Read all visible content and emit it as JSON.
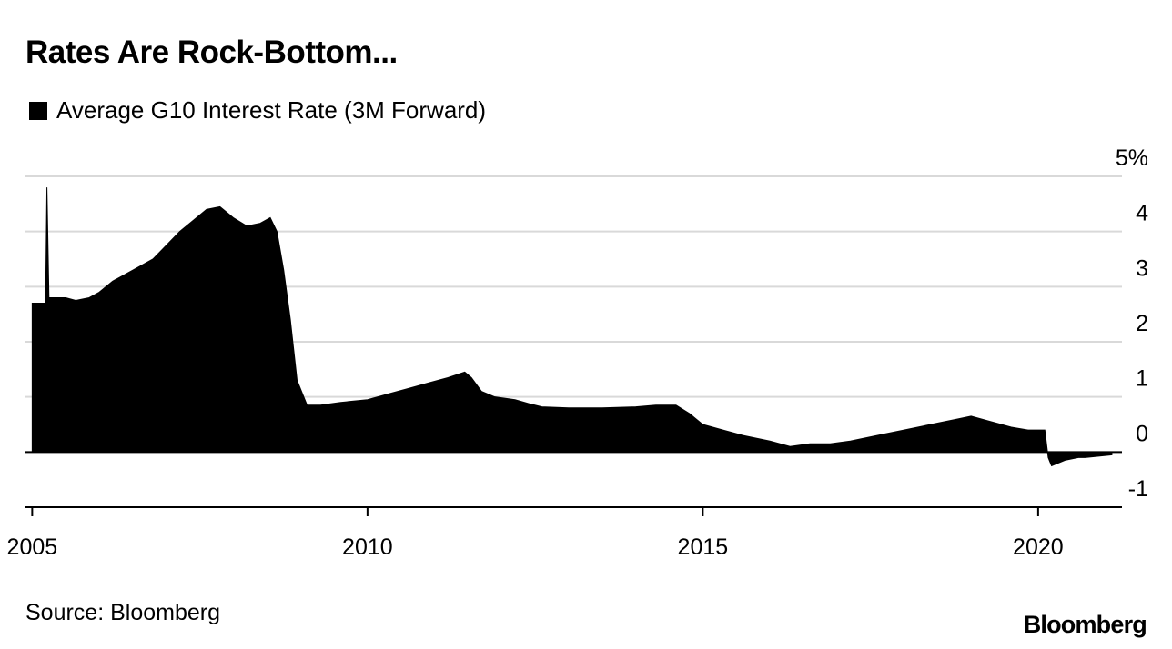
{
  "chart_data": {
    "type": "area",
    "title": "Rates Are Rock-Bottom...",
    "legend": [
      {
        "label": "Average G10 Interest Rate (3M Forward)",
        "color": "#000000"
      }
    ],
    "legend_position": "top-left",
    "xlabel": "",
    "ylabel": "",
    "xlim": [
      2004.9,
      2021.25
    ],
    "ylim": [
      -1,
      5
    ],
    "x_ticks": [
      2005,
      2010,
      2015,
      2020
    ],
    "x_tick_labels": [
      "2005",
      "2010",
      "2015",
      "2020"
    ],
    "y_ticks": [
      5,
      4,
      3,
      2,
      1,
      0,
      -1
    ],
    "y_tick_labels": [
      "5%",
      "4",
      "3",
      "2",
      "1",
      "0",
      "-1"
    ],
    "grid": true,
    "series": [
      {
        "name": "Average G10 Interest Rate (3M Forward)",
        "x": [
          2005.0,
          2005.2,
          2005.22,
          2005.25,
          2005.5,
          2005.65,
          2005.85,
          2006.0,
          2006.2,
          2006.5,
          2006.8,
          2007.0,
          2007.2,
          2007.4,
          2007.6,
          2007.8,
          2008.0,
          2008.2,
          2008.4,
          2008.55,
          2008.65,
          2008.75,
          2008.85,
          2008.95,
          2009.1,
          2009.3,
          2009.6,
          2010.0,
          2010.3,
          2010.6,
          2010.9,
          2011.2,
          2011.45,
          2011.55,
          2011.7,
          2011.9,
          2012.2,
          2012.4,
          2012.6,
          2013.0,
          2013.5,
          2014.0,
          2014.3,
          2014.6,
          2014.8,
          2015.0,
          2015.3,
          2015.6,
          2016.0,
          2016.3,
          2016.6,
          2016.9,
          2017.2,
          2017.6,
          2018.0,
          2018.4,
          2018.8,
          2019.0,
          2019.3,
          2019.6,
          2019.85,
          2020.1,
          2020.15,
          2020.2,
          2020.4,
          2020.6,
          2020.7,
          2021.1
        ],
        "values": [
          2.7,
          2.7,
          4.8,
          2.8,
          2.8,
          2.75,
          2.8,
          2.9,
          3.1,
          3.3,
          3.5,
          3.75,
          4.0,
          4.2,
          4.4,
          4.45,
          4.25,
          4.1,
          4.15,
          4.25,
          4.0,
          3.3,
          2.4,
          1.3,
          0.85,
          0.85,
          0.9,
          0.95,
          1.05,
          1.15,
          1.25,
          1.35,
          1.45,
          1.35,
          1.1,
          1.0,
          0.95,
          0.88,
          0.82,
          0.8,
          0.8,
          0.82,
          0.85,
          0.85,
          0.7,
          0.5,
          0.4,
          0.3,
          0.2,
          0.1,
          0.15,
          0.15,
          0.2,
          0.3,
          0.4,
          0.5,
          0.6,
          0.65,
          0.55,
          0.45,
          0.4,
          0.4,
          -0.1,
          -0.25,
          -0.15,
          -0.1,
          -0.1,
          -0.05
        ]
      }
    ]
  },
  "page": {
    "title": "Rates Are Rock-Bottom...",
    "legend_label": "Average G10 Interest Rate (3M Forward)",
    "source": "Source: Bloomberg",
    "brand": "Bloomberg"
  },
  "colors": {
    "series": "#000000",
    "grid": "#d9d9d9",
    "axis": "#000000",
    "background": "#ffffff"
  }
}
